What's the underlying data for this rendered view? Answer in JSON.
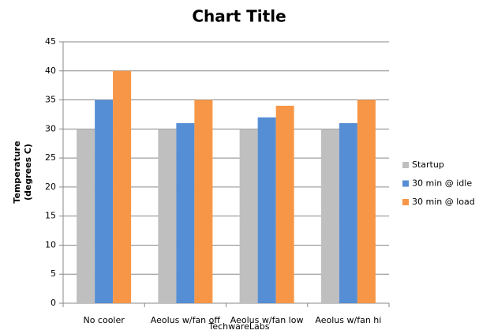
{
  "chart_data": {
    "type": "bar",
    "title": "Chart Title",
    "ylabel": [
      "Temperature",
      "(degrees C)"
    ],
    "xlabel": "TechwareLabs",
    "categories": [
      "No cooler",
      "Aeolus w/fan off",
      "Aeolus w/fan low",
      "Aeolus w/fan hi"
    ],
    "series": [
      {
        "name": "Startup",
        "color": "#bfbfbf",
        "values": [
          30,
          30,
          30,
          30
        ]
      },
      {
        "name": "30 min @ idle",
        "color": "#558ed5",
        "values": [
          35,
          31,
          32,
          31
        ]
      },
      {
        "name": "30 min @ load",
        "color": "#f79646",
        "values": [
          40,
          35,
          34,
          35
        ]
      }
    ],
    "ylim": [
      0,
      45
    ],
    "yticks": [
      0,
      5,
      10,
      15,
      20,
      25,
      30,
      35,
      40,
      45
    ],
    "grid": true,
    "legend": "right"
  }
}
